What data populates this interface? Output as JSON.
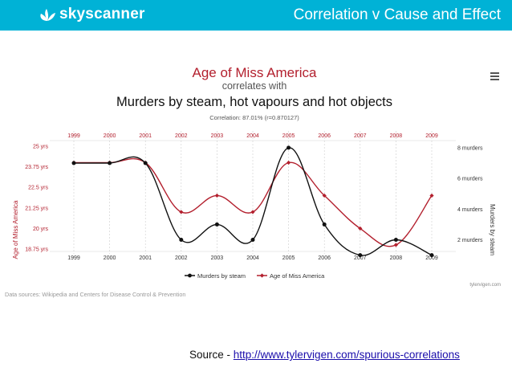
{
  "header": {
    "brand": "skyscanner",
    "title": "Correlation v Cause and Effect"
  },
  "colors": {
    "banner": "#00b2d6",
    "murders": "#111111",
    "age": "#b3202e"
  },
  "chart_data": {
    "type": "line",
    "title": "Age of Miss America",
    "subtitle": "correlates with",
    "subtitle2": "Murders by steam, hot vapours and hot objects",
    "correlation": "Correlation: 87.01% (r=0.870127)",
    "categories": [
      "1999",
      "2000",
      "2001",
      "2002",
      "2003",
      "2004",
      "2005",
      "2006",
      "2007",
      "2008",
      "2009"
    ],
    "series": [
      {
        "name": "Murders by steam",
        "axis": "right",
        "values": [
          7,
          7,
          7,
          2,
          3,
          2,
          8,
          3,
          1,
          2,
          1
        ]
      },
      {
        "name": "Age of Miss America",
        "axis": "left",
        "values": [
          24,
          24,
          24,
          21,
          22,
          21,
          24,
          22,
          20,
          19,
          22
        ]
      }
    ],
    "left_axis": {
      "label": "Age of Miss America",
      "ticks": [
        "18.75 yrs",
        "20 yrs",
        "21.25 yrs",
        "22.5 yrs",
        "23.75 yrs",
        "25 yrs"
      ],
      "ylim": [
        18.75,
        25
      ]
    },
    "right_axis": {
      "label": "Murders by steam",
      "ticks": [
        "2 murders",
        "4 murders",
        "6 murders",
        "8 murders"
      ],
      "ylim": [
        1.4,
        8.1
      ]
    },
    "menu_icon": "hamburger-menu-icon",
    "credit": "tylervigen.com",
    "data_sources": "Data sources: Wikipedia and Centers for Disease Control & Prevention"
  },
  "source": {
    "prefix": "Source - ",
    "url": "http://www.tylervigen.com/spurious-correlations"
  }
}
